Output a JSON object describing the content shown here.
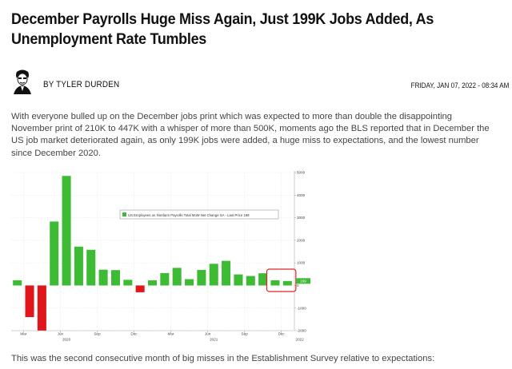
{
  "article": {
    "headline": "December Payrolls Huge Miss Again, Just 199K Jobs Added, As Unemployment Rate Tumbles",
    "byline": "BY TYLER DURDEN",
    "date": "FRIDAY, JAN 07, 2022 - 08:34 AM",
    "paragraph1": "With everyone bulled up on the December jobs print which was expected to more than double the disappointing November print of 210K to 447K with a whisper of more than 500K, moments ago the BLS reported that in December the US job market deteriorated again, as only 199K jobs were added, a huge miss to expectations, and the lowest number since December 2020.",
    "paragraph2": "This was the second consecutive month of big misses in the Establishment Survey relative to expectations:"
  },
  "chart_data": {
    "type": "bar",
    "legend": "US Employees on Nonfarm Payrolls Total MoM Net Change SA - Last Price 199",
    "legend_position": "top-right",
    "y_axis_position": "right",
    "ylim": [
      -2000,
      5000
    ],
    "yticks": [
      "5000",
      "4000",
      "3000",
      "2000",
      "1000",
      "0",
      "-1000",
      "-2000"
    ],
    "ytick_values": [
      5000,
      4000,
      3000,
      2000,
      1000,
      0,
      -1000,
      -2000
    ],
    "month_labels": [
      "Mar",
      "Jun",
      "Sep",
      "Dec",
      "Mar",
      "Jun",
      "Sep",
      "Dec"
    ],
    "month_label_index": [
      1,
      4,
      7,
      10,
      13,
      16,
      19,
      22
    ],
    "year_labels": [
      "2020",
      "2021",
      "2022"
    ],
    "year_label_index": [
      4.5,
      16.5,
      23.5
    ],
    "values": [
      230,
      -1400,
      -2000,
      2830,
      4850,
      1720,
      1580,
      700,
      680,
      250,
      -300,
      230,
      550,
      780,
      280,
      690,
      960,
      1090,
      490,
      420,
      540,
      230,
      199
    ],
    "last_value_label": "199",
    "colors": {
      "positive": "#3dbb35",
      "negative": "#e0161b",
      "highlight": "#d9262b"
    }
  }
}
